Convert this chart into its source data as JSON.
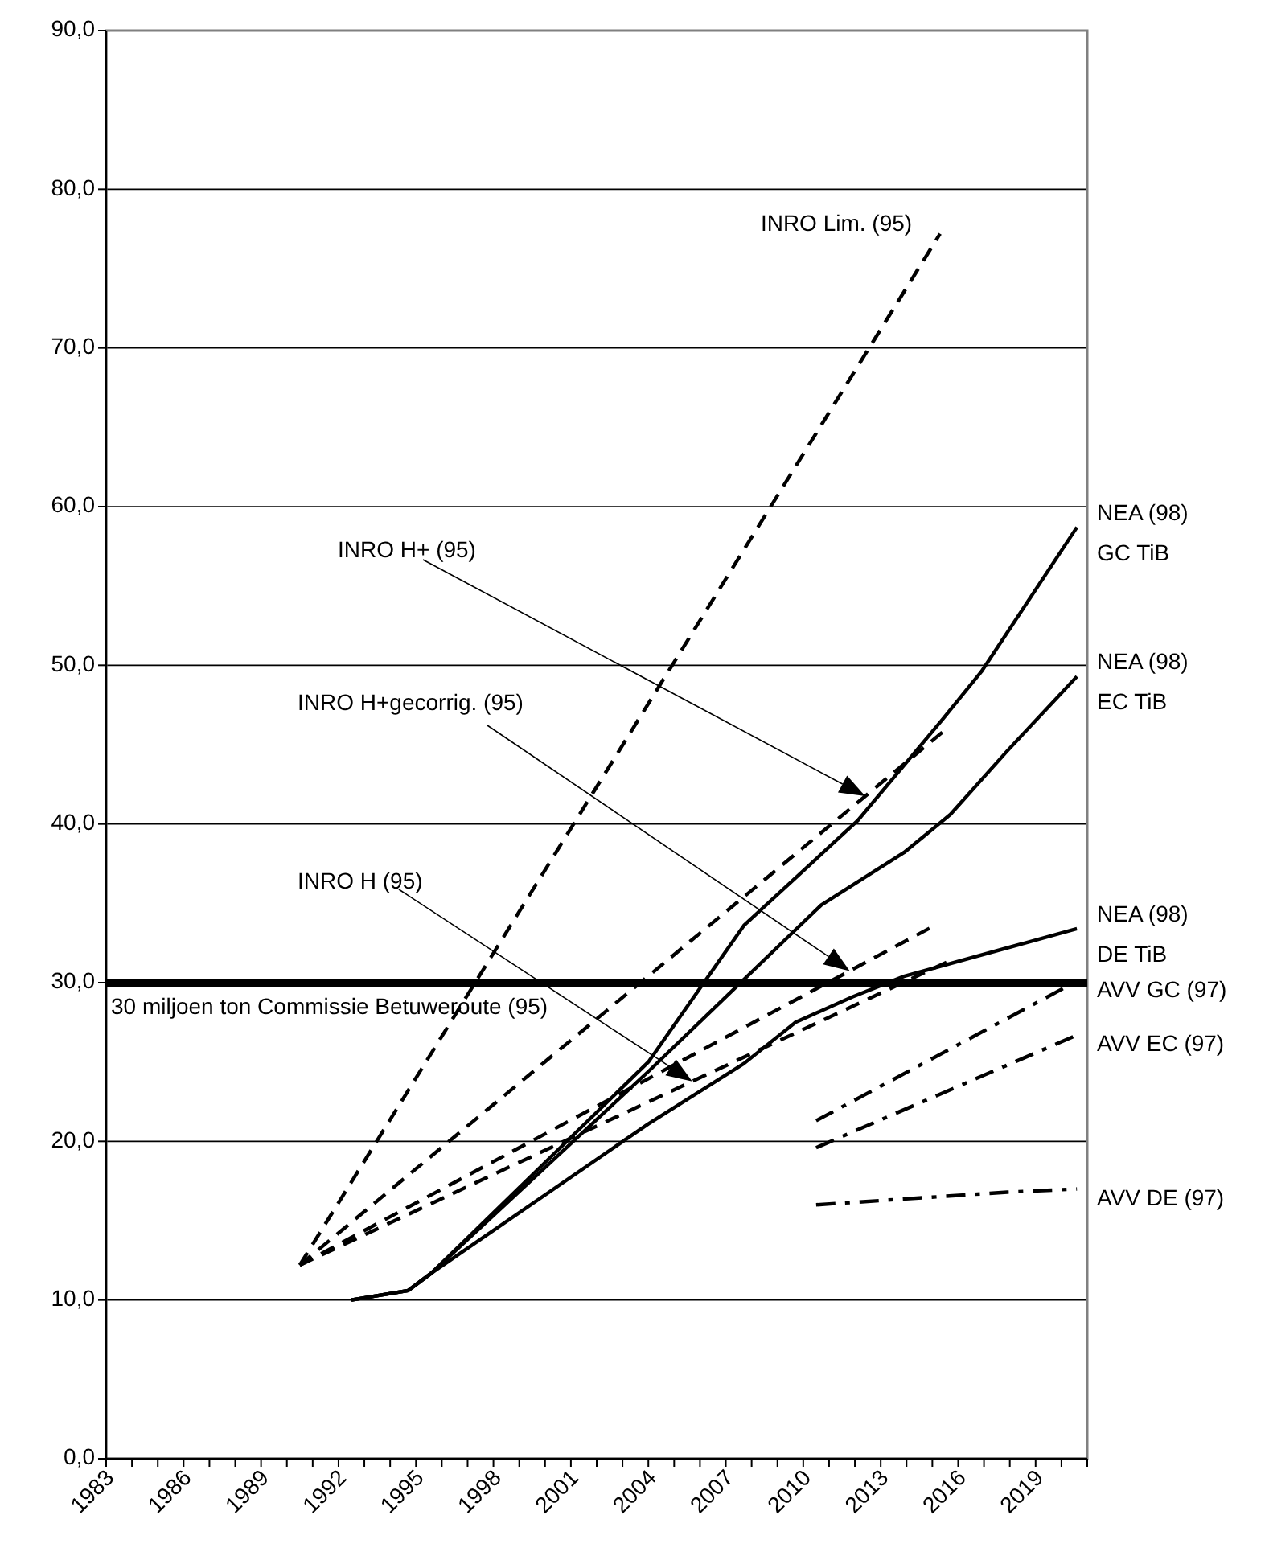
{
  "chart_data": {
    "type": "line",
    "xlim": [
      1983,
      2021
    ],
    "ylim": [
      0,
      90
    ],
    "xticks": [
      1983,
      {
        "value": 1984,
        "label": null
      },
      {
        "value": 1985,
        "label": null
      },
      1986,
      {
        "value": 1987,
        "label": null
      },
      {
        "value": 1988,
        "label": null
      },
      1989,
      {
        "value": 1990,
        "label": null
      },
      {
        "value": 1991,
        "label": null
      },
      1992,
      {
        "value": 1993,
        "label": null
      },
      {
        "value": 1994,
        "label": null
      },
      1995,
      {
        "value": 1996,
        "label": null
      },
      {
        "value": 1997,
        "label": null
      },
      1998,
      {
        "value": 1999,
        "label": null
      },
      {
        "value": 2000,
        "label": null
      },
      2001,
      {
        "value": 2002,
        "label": null
      },
      {
        "value": 2003,
        "label": null
      },
      2004,
      {
        "value": 2005,
        "label": null
      },
      {
        "value": 2006,
        "label": null
      },
      2007,
      {
        "value": 2008,
        "label": null
      },
      {
        "value": 2009,
        "label": null
      },
      2010,
      {
        "value": 2011,
        "label": null
      },
      {
        "value": 2012,
        "label": null
      },
      2013,
      {
        "value": 2014,
        "label": null
      },
      {
        "value": 2015,
        "label": null
      },
      2016,
      {
        "value": 2017,
        "label": null
      },
      {
        "value": 2018,
        "label": null
      },
      2019,
      {
        "value": 2020,
        "label": null
      },
      {
        "value": 2021,
        "label": null
      }
    ],
    "yticks": [
      {
        "value": 0,
        "label": "0,0"
      },
      {
        "value": 10,
        "label": "10,0"
      },
      {
        "value": 20,
        "label": "20,0"
      },
      {
        "value": 30,
        "label": "30,0"
      },
      {
        "value": 40,
        "label": "40,0"
      },
      {
        "value": 50,
        "label": "50,0"
      },
      {
        "value": 60,
        "label": "60,0"
      },
      {
        "value": 70,
        "label": "70,0"
      },
      {
        "value": 80,
        "label": "80,0"
      },
      {
        "value": 90,
        "label": "90,0"
      }
    ],
    "grid": "y",
    "ref_lines": [
      {
        "axis": "y",
        "value": 30,
        "label": "30 miljoen ton Commissie Betuweroute (95)",
        "color": "#000000"
      }
    ],
    "series": [
      {
        "name": "INRO Lim. (95)",
        "color": "#000000",
        "line_style": "dashed",
        "x": [
          1990.5,
          2015.3
        ],
        "values": [
          12.2,
          77.2
        ]
      },
      {
        "name": "INRO H+ (95)",
        "color": "#000000",
        "line_style": "dashed",
        "x": [
          1990.5,
          2015.4
        ],
        "values": [
          12.2,
          45.8
        ]
      },
      {
        "name": "INRO H+gecorrig. (95)",
        "color": "#000000",
        "line_style": "dashed",
        "x": [
          1990.5,
          2015.2
        ],
        "values": [
          12.2,
          33.7
        ]
      },
      {
        "name": "INRO H (95)",
        "color": "#000000",
        "line_style": "dashed",
        "x": [
          1990.5,
          2015.7
        ],
        "values": [
          12.2,
          31.4
        ]
      },
      {
        "name": "NEA (98)\nGC TiB",
        "color": "#000000",
        "line_style": "solid",
        "x": [
          1992.5,
          1994.7,
          1995.6,
          2004,
          2007.7,
          2012.1,
          2015.4,
          2016.9,
          2020.6
        ],
        "values": [
          10.0,
          10.6,
          11.7,
          25.0,
          33.6,
          40.2,
          46.6,
          49.6,
          58.7
        ]
      },
      {
        "name": "NEA (98)\nEC TiB",
        "color": "#000000",
        "line_style": "solid",
        "x": [
          1992.5,
          1994.7,
          1995.6,
          2004,
          2010.7,
          2013.9,
          2015.7,
          2017.9,
          2020.6
        ],
        "values": [
          10.0,
          10.6,
          11.7,
          24.4,
          34.9,
          38.2,
          40.6,
          44.6,
          49.3
        ]
      },
      {
        "name": "NEA (98)\nDE TiB",
        "color": "#000000",
        "line_style": "solid",
        "x": [
          1992.5,
          1994.7,
          1995.6,
          2004,
          2007.7,
          2009.7,
          2011.9,
          2013.9,
          2020.6
        ],
        "values": [
          10.0,
          10.6,
          11.7,
          21.1,
          24.9,
          27.5,
          29.1,
          30.4,
          33.4
        ]
      },
      {
        "name": "AVV GC (97)",
        "color": "#000000",
        "line_style": "dashdot",
        "x": [
          2010.5,
          2020.6
        ],
        "values": [
          21.3,
          30.1
        ]
      },
      {
        "name": "AVV EC (97)",
        "color": "#000000",
        "line_style": "dashdot",
        "x": [
          2010.5,
          2020.6
        ],
        "values": [
          19.6,
          26.7
        ]
      },
      {
        "name": "AVV DE (97)",
        "color": "#000000",
        "line_style": "dashdot",
        "x": [
          2010.5,
          2017.9,
          2020.6
        ],
        "values": [
          16.0,
          16.8,
          17.0
        ]
      }
    ]
  }
}
